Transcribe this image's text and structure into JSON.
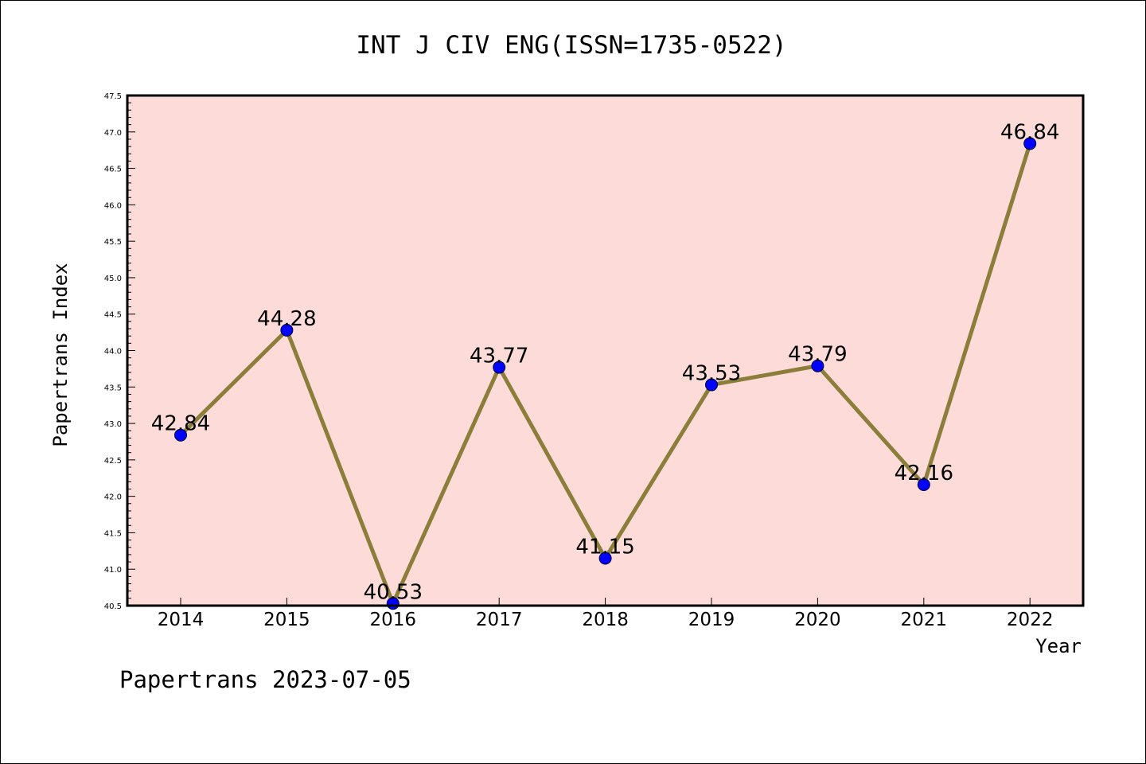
{
  "chart_data": {
    "type": "line",
    "title": "INT J CIV ENG(ISSN=1735-0522)",
    "xlabel": "Year",
    "ylabel": "Papertrans Index",
    "categories": [
      "2014",
      "2015",
      "2016",
      "2017",
      "2018",
      "2019",
      "2020",
      "2021",
      "2022"
    ],
    "series": [
      {
        "values": [
          42.84,
          44.28,
          40.53,
          43.77,
          41.15,
          43.53,
          43.79,
          42.16,
          46.84
        ],
        "data_labels": [
          "42.84",
          "44.28",
          "40.53",
          "43.77",
          "41.15",
          "43.53",
          "43.79",
          "42.16",
          "46.84"
        ]
      }
    ],
    "ylim": [
      40.5,
      47.5
    ],
    "yticks": [
      "40.5",
      "41.0",
      "41.5",
      "42.0",
      "42.5",
      "43.0",
      "43.5",
      "44.0",
      "44.5",
      "45.0",
      "45.5",
      "46.0",
      "46.5",
      "47.0",
      "47.5"
    ],
    "grid": false,
    "colors": {
      "plot_background": "#fddbd8",
      "line": "#8b7d3a",
      "marker": "#0000ff"
    }
  },
  "footer": "Papertrans 2023-07-05"
}
